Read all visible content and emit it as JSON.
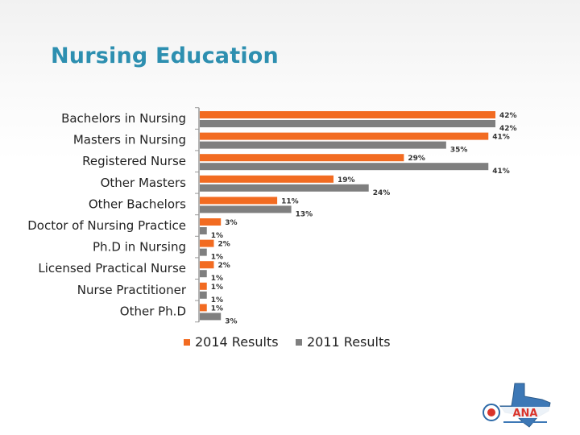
{
  "title": "Nursing Education",
  "chart_data": {
    "type": "bar",
    "orientation": "horizontal",
    "categories": [
      "Bachelors in Nursing",
      "Masters in Nursing",
      "Registered Nurse",
      "Other Masters",
      "Other Bachelors",
      "Doctor of Nursing Practice",
      "Ph.D in Nursing",
      "Licensed Practical Nurse",
      "Nurse Practitioner",
      "Other Ph.D"
    ],
    "series": [
      {
        "name": "2014 Results",
        "values": [
          42,
          41,
          29,
          19,
          11,
          3,
          2,
          2,
          1,
          1
        ],
        "labels": [
          "42%",
          "41%",
          "29%",
          "19%",
          "11%",
          "3%",
          "2%",
          "2%",
          "1%",
          "1%"
        ],
        "color": "#f26b21"
      },
      {
        "name": "2011 Results",
        "values": [
          42,
          35,
          41,
          24,
          13,
          1,
          1,
          1,
          1,
          3
        ],
        "labels": [
          "42%",
          "35%",
          "41%",
          "24%",
          "13%",
          "1%",
          "1%",
          "1%",
          "1%",
          "3%"
        ],
        "color": "#7f7f7f"
      }
    ],
    "xlim": [
      0,
      42
    ],
    "grid": false,
    "legend_position": "bottom"
  },
  "logo": {
    "name": "texas-nurses-association-logo",
    "text": "ANA"
  }
}
